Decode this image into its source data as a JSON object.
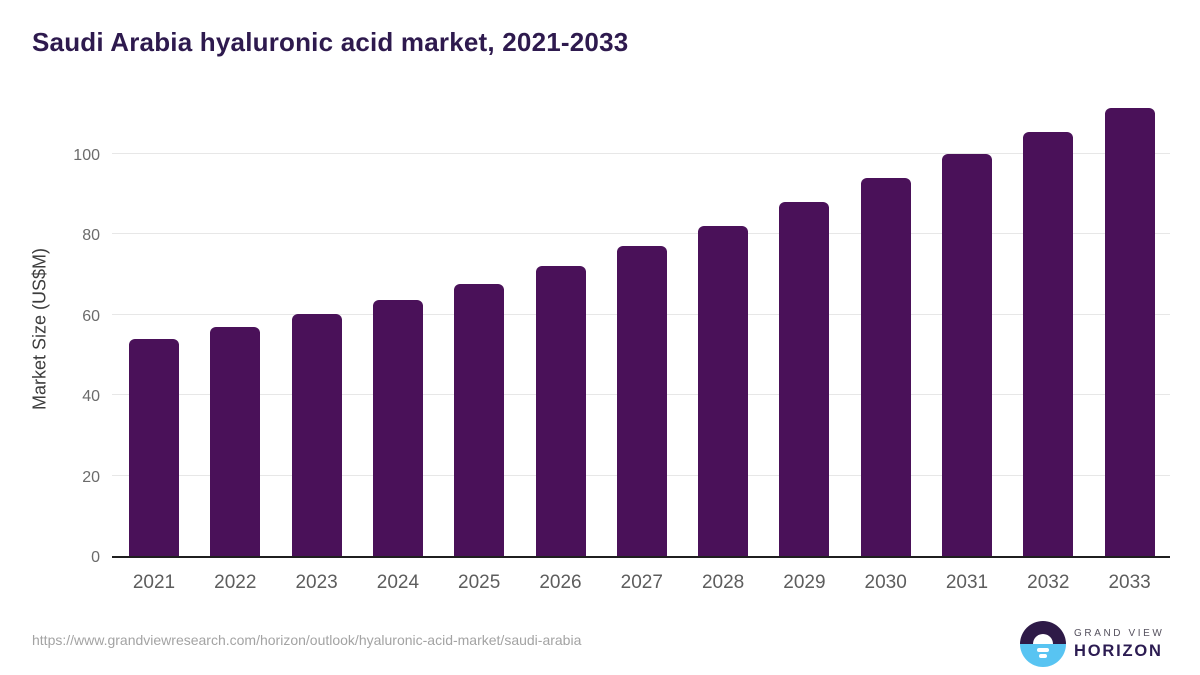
{
  "chart_data": {
    "type": "bar",
    "title": "Saudi Arabia hyaluronic acid market, 2021-2033",
    "xlabel": "",
    "ylabel": "Market Size (US$M)",
    "categories": [
      "2021",
      "2022",
      "2023",
      "2024",
      "2025",
      "2026",
      "2027",
      "2028",
      "2029",
      "2030",
      "2031",
      "2032",
      "2033"
    ],
    "values": [
      53.9,
      57.0,
      60.2,
      63.7,
      67.6,
      72.1,
      76.9,
      82.1,
      87.9,
      94.0,
      99.8,
      105.4,
      111.2
    ],
    "yticks": [
      0,
      20,
      40,
      60,
      80,
      100
    ],
    "ylim": [
      0,
      114
    ],
    "grid": "horizontal",
    "legend": "none",
    "bar_color": "#4A1159"
  },
  "footer": {
    "source_url": "https://www.grandviewresearch.com/horizon/outlook/hyaluronic-acid-market/saudi-arabia",
    "logo": {
      "top_text": "GRAND VIEW",
      "bottom_text": "HORIZON"
    }
  },
  "colors": {
    "title_text": "#2E1A4E",
    "bar": "#4A1159",
    "axis_title_text": "#3D3D3D",
    "y_tick_text": "#6B6B6B",
    "x_tick_text": "#5D5D5D",
    "gridline": "#E7E7E7",
    "axis_line": "#1F1F1F",
    "url_text": "#A3A3A3",
    "logo_dark": "#2E1A47",
    "logo_blue": "#58C4F2",
    "logo_horizon_text": "#2C1C52"
  }
}
